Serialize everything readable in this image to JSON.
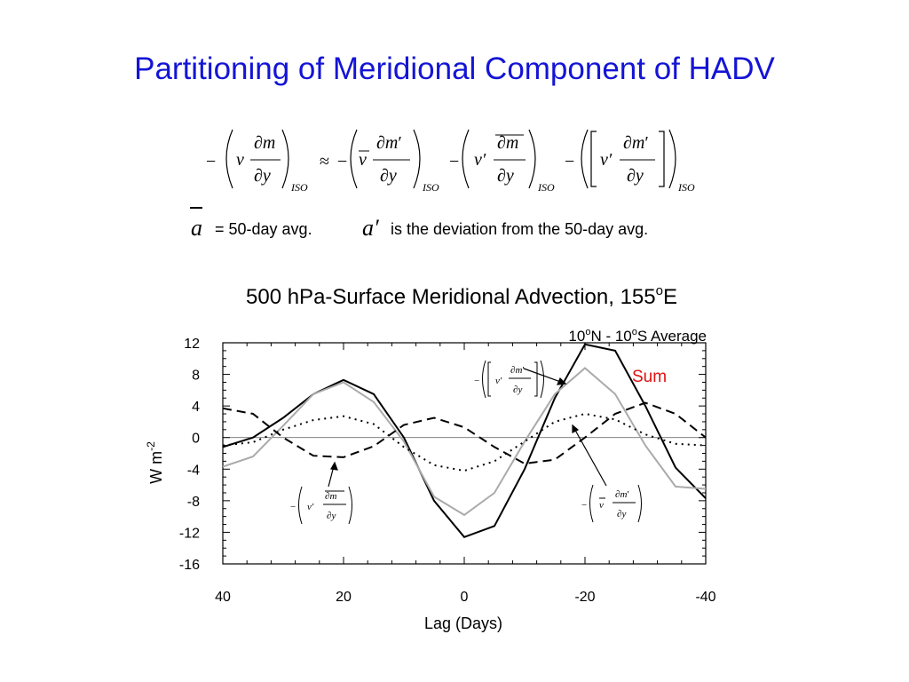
{
  "slide": {
    "title": "Partitioning of Meridional Component of HADV",
    "definition_avg_symbol": "a",
    "definition_avg_text": "= 50-day avg.",
    "definition_dev_symbol": "a′",
    "definition_dev_text": "is the deviation from the 50-day avg."
  },
  "equation": {
    "iso_subscript": "ISO",
    "approx": "≈"
  },
  "chart_data": {
    "type": "line",
    "title": "500 hPa-Surface Meridional Advection, 155°E",
    "subtitle": "10°N - 10°S Average",
    "xlabel": "Lag (Days)",
    "ylabel": "W m-2",
    "xlim": [
      40,
      -40
    ],
    "ylim": [
      -16,
      12
    ],
    "xticks": [
      "40",
      "20",
      "0",
      "-20",
      "-40"
    ],
    "xtick_values": [
      40,
      20,
      0,
      -20,
      -40
    ],
    "yticks": [
      "12",
      "8",
      "4",
      "0",
      "-4",
      "-8",
      "-12",
      "-16"
    ],
    "ytick_values": [
      12,
      8,
      4,
      0,
      -4,
      -8,
      -12,
      -16
    ],
    "x": [
      40,
      35,
      30,
      25,
      20,
      15,
      10,
      5,
      0,
      -5,
      -10,
      -15,
      -20,
      -25,
      -30,
      -35,
      -40
    ],
    "series": [
      {
        "name": "Sum",
        "style": "solid",
        "color": "#000000",
        "values": [
          -1.2,
          0,
          2.5,
          5.5,
          7.3,
          5.5,
          0,
          -8,
          -12.6,
          -11.2,
          -4,
          5,
          11.8,
          11,
          4,
          -3.8,
          -7.7
        ]
      },
      {
        "name": "",
        "style": "solid",
        "color": "#aaaaaa",
        "values": [
          -3.7,
          -2.4,
          1.5,
          5.5,
          7,
          4.5,
          -0.5,
          -7.5,
          -9.8,
          -7,
          -0.5,
          5.5,
          8.8,
          5.5,
          -1,
          -6.2,
          -6.5
        ]
      },
      {
        "name": "",
        "style": "dashed",
        "color": "#000000",
        "values": [
          3.7,
          3,
          0,
          -2.3,
          -2.5,
          -1.1,
          1.6,
          2.5,
          1.3,
          -1.2,
          -3.3,
          -2.8,
          0,
          3,
          4.4,
          3,
          0
        ]
      },
      {
        "name": "",
        "style": "dotted",
        "color": "#000000",
        "values": [
          -1,
          -0.6,
          1,
          2.2,
          2.7,
          1.7,
          -1.2,
          -3.5,
          -4.2,
          -3,
          -0.5,
          2,
          3,
          2.3,
          0.4,
          -0.8,
          -1
        ]
      }
    ],
    "annotations": [
      "Sum"
    ],
    "grid": false
  }
}
